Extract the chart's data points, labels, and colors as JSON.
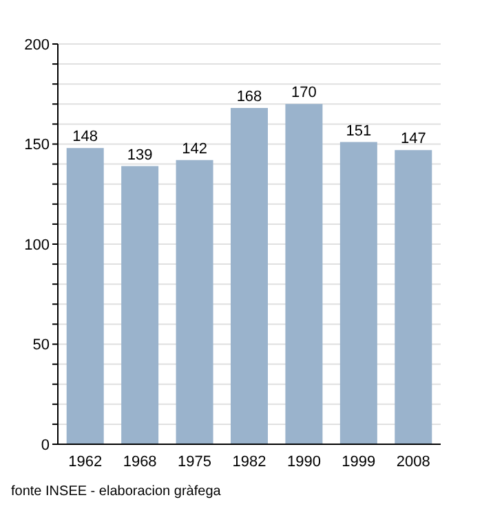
{
  "chart_data": {
    "type": "bar",
    "categories": [
      "1962",
      "1968",
      "1975",
      "1982",
      "1990",
      "1999",
      "2008"
    ],
    "values": [
      148,
      139,
      142,
      168,
      170,
      151,
      147
    ],
    "color": "#9ab3cc",
    "ylim": [
      0,
      200
    ],
    "yticks": [
      0,
      {
        "value": 10,
        "label": null
      },
      {
        "value": 20,
        "label": null
      },
      {
        "value": 30,
        "label": null
      },
      {
        "value": 40,
        "label": null
      },
      50,
      {
        "value": 60,
        "label": null
      },
      {
        "value": 70,
        "label": null
      },
      {
        "value": 80,
        "label": null
      },
      {
        "value": 90,
        "label": null
      },
      100,
      {
        "value": 110,
        "label": null
      },
      {
        "value": 120,
        "label": null
      },
      {
        "value": 130,
        "label": null
      },
      {
        "value": 140,
        "label": null
      },
      150,
      {
        "value": 160,
        "label": null
      },
      {
        "value": 170,
        "label": null
      },
      {
        "value": 180,
        "label": null
      },
      {
        "value": 190,
        "label": null
      },
      200
    ],
    "grid": "y",
    "data_labels": true,
    "annotations": [
      "fonte INSEE - elaboracion gràfega"
    ]
  }
}
